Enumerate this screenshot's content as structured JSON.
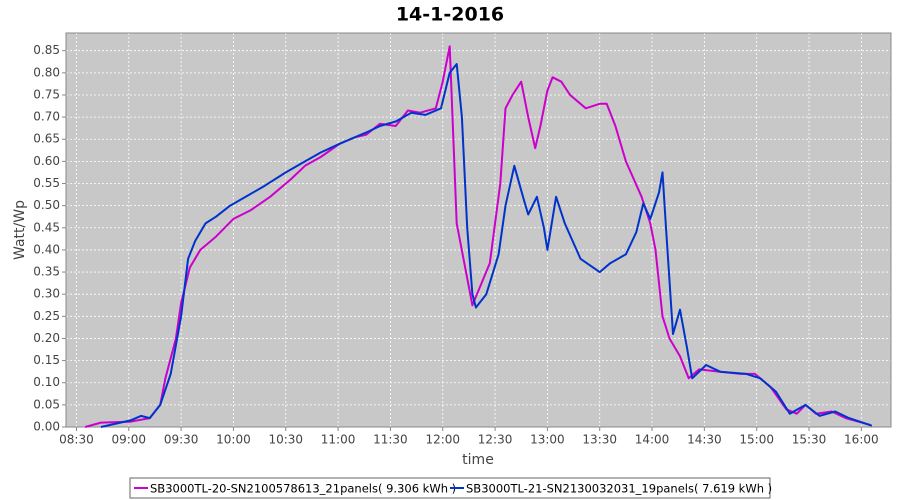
{
  "chart_data": {
    "type": "line",
    "title": "14-1-2016",
    "xlabel": "time",
    "ylabel": "Watt/Wp",
    "grid": true,
    "legend": "bottom",
    "xlim": [
      "08:24",
      "16:17"
    ],
    "xticks": [
      "08:30",
      "09:00",
      "09:30",
      "10:00",
      "10:30",
      "11:00",
      "11:30",
      "12:00",
      "12:30",
      "13:00",
      "13:30",
      "14:00",
      "14:30",
      "15:00",
      "15:30",
      "16:00"
    ],
    "ylim": [
      0,
      0.89
    ],
    "yticks": [
      {
        "value": 0,
        "label": "0.00"
      },
      {
        "value": 0.05,
        "label": "0.05"
      },
      {
        "value": 0.1,
        "label": "0.10"
      },
      {
        "value": 0.15,
        "label": "0.15"
      },
      {
        "value": 0.2,
        "label": "0.20"
      },
      {
        "value": 0.25,
        "label": "0.25"
      },
      {
        "value": 0.3,
        "label": "0.30"
      },
      {
        "value": 0.35,
        "label": "0.35"
      },
      {
        "value": 0.4,
        "label": "0.40"
      },
      {
        "value": 0.45,
        "label": "0.45"
      },
      {
        "value": 0.5,
        "label": "0.50"
      },
      {
        "value": 0.55,
        "label": "0.55"
      },
      {
        "value": 0.6,
        "label": "0.60"
      },
      {
        "value": 0.65,
        "label": "0.65"
      },
      {
        "value": 0.7,
        "label": "0.70"
      },
      {
        "value": 0.75,
        "label": "0.75"
      },
      {
        "value": 0.8,
        "label": "0.80"
      },
      {
        "value": 0.85,
        "label": "0.85"
      }
    ],
    "series": [
      {
        "name": "SB3000TL-20-SN2100578613_21panels( 9.306 kWh )",
        "color": "#cc00cc",
        "x": [
          "08:35",
          "08:44",
          "09:01",
          "09:12",
          "09:18",
          "09:21",
          "09:27",
          "09:30",
          "09:35",
          "09:41",
          "09:50",
          "10:00",
          "10:10",
          "10:21",
          "10:33",
          "10:41",
          "10:50",
          "11:01",
          "11:10",
          "11:16",
          "11:24",
          "11:33",
          "11:40",
          "11:47",
          "11:56",
          "12:00",
          "12:04",
          "12:08",
          "12:17",
          "12:27",
          "12:33",
          "12:36",
          "12:40",
          "12:45",
          "12:49",
          "12:53",
          "12:56",
          "13:00",
          "13:03",
          "13:08",
          "13:13",
          "13:22",
          "13:30",
          "13:34",
          "13:39",
          "13:45",
          "13:54",
          "13:59",
          "14:02",
          "14:06",
          "14:10",
          "14:16",
          "14:21",
          "14:27",
          "14:39",
          "14:51",
          "14:59",
          "15:08",
          "15:17",
          "15:23",
          "15:28",
          "15:34",
          "15:43",
          "15:51",
          "16:05"
        ],
        "values": [
          0.0,
          0.01,
          0.012,
          0.02,
          0.05,
          0.11,
          0.2,
          0.28,
          0.36,
          0.4,
          0.43,
          0.47,
          0.49,
          0.52,
          0.56,
          0.59,
          0.61,
          0.64,
          0.655,
          0.66,
          0.685,
          0.68,
          0.715,
          0.71,
          0.72,
          0.78,
          0.86,
          0.46,
          0.275,
          0.37,
          0.55,
          0.72,
          0.75,
          0.78,
          0.7,
          0.63,
          0.68,
          0.76,
          0.79,
          0.78,
          0.75,
          0.72,
          0.73,
          0.73,
          0.68,
          0.6,
          0.52,
          0.46,
          0.4,
          0.25,
          0.2,
          0.16,
          0.11,
          0.13,
          0.125,
          0.12,
          0.12,
          0.09,
          0.04,
          0.03,
          0.05,
          0.03,
          0.035,
          0.02,
          0.005
        ]
      },
      {
        "name": "SB3000TL-21-SN2130032031_19panels( 7.619 kWh )",
        "color": "#0033cc",
        "x": [
          "08:44",
          "09:01",
          "09:07",
          "09:12",
          "09:18",
          "09:24",
          "09:30",
          "09:34",
          "09:38",
          "09:44",
          "09:50",
          "09:58",
          "10:07",
          "10:18",
          "10:30",
          "10:41",
          "10:50",
          "11:01",
          "11:16",
          "11:24",
          "11:33",
          "11:42",
          "11:50",
          "11:59",
          "12:04",
          "12:08",
          "12:11",
          "12:14",
          "12:17",
          "12:19",
          "12:25",
          "12:32",
          "12:36",
          "12:41",
          "12:46",
          "12:49",
          "12:54",
          "12:58",
          "13:00",
          "13:05",
          "13:10",
          "13:19",
          "13:30",
          "13:36",
          "13:45",
          "13:51",
          "13:55",
          "13:59",
          "14:04",
          "14:06",
          "14:08",
          "14:12",
          "14:16",
          "14:20",
          "14:23",
          "14:31",
          "14:39",
          "14:54",
          "15:02",
          "15:11",
          "15:19",
          "15:28",
          "15:36",
          "15:45",
          "15:53",
          "16:06"
        ],
        "values": [
          0.0,
          0.015,
          0.025,
          0.02,
          0.05,
          0.12,
          0.25,
          0.38,
          0.42,
          0.46,
          0.475,
          0.5,
          0.52,
          0.545,
          0.575,
          0.6,
          0.62,
          0.64,
          0.665,
          0.68,
          0.69,
          0.71,
          0.705,
          0.72,
          0.8,
          0.82,
          0.7,
          0.45,
          0.3,
          0.27,
          0.3,
          0.39,
          0.5,
          0.59,
          0.52,
          0.48,
          0.52,
          0.45,
          0.4,
          0.52,
          0.46,
          0.38,
          0.35,
          0.37,
          0.39,
          0.44,
          0.505,
          0.47,
          0.53,
          0.575,
          0.45,
          0.21,
          0.265,
          0.18,
          0.11,
          0.14,
          0.125,
          0.12,
          0.11,
          0.08,
          0.03,
          0.05,
          0.025,
          0.035,
          0.02,
          0.003
        ]
      }
    ]
  }
}
